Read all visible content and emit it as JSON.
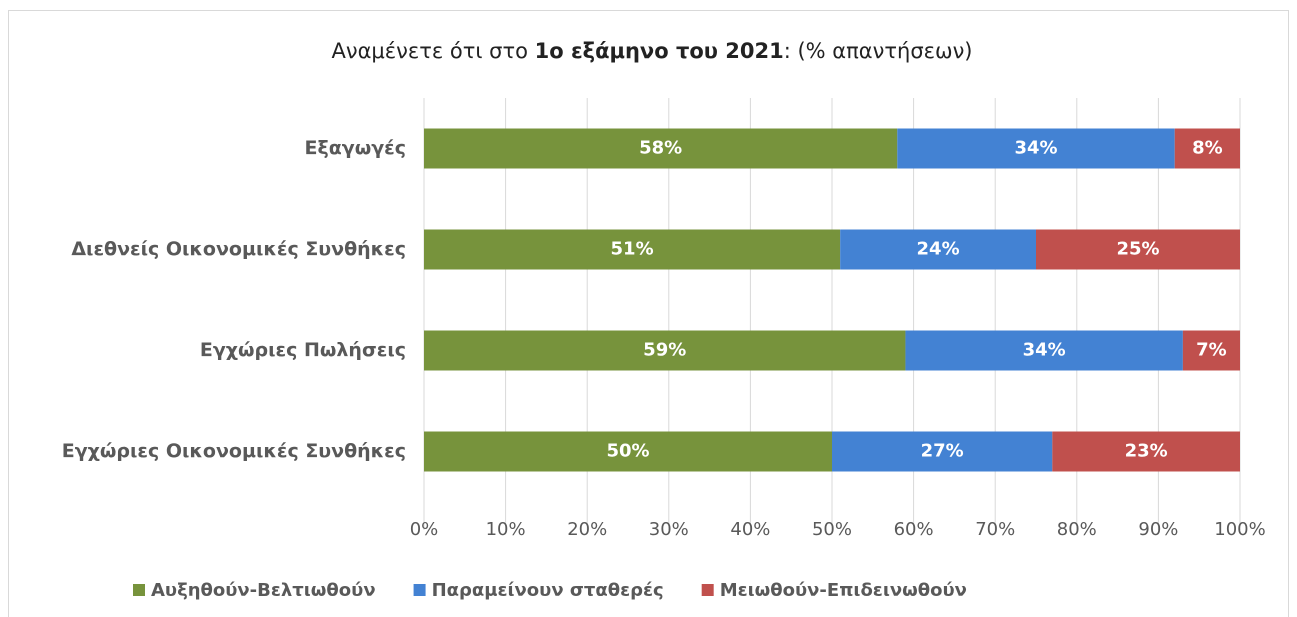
{
  "chart_data": {
    "type": "stacked_barh",
    "title": [
      "Αναμένετε ότι στο ",
      "1ο εξάμηνο του 2021",
      ": (% απαντήσεων)"
    ],
    "categories": [
      "Εξαγωγές",
      "Διεθνείς Οικονομικές Συνθήκες",
      "Εγχώριες Πωλήσεις",
      "Εγχώριες Οικονομικές Συνθήκες"
    ],
    "series": [
      {
        "name": "Αυξηθούν-Βελτιωθούν",
        "color": "#77933c",
        "values": [
          58,
          51,
          59,
          50
        ],
        "value_labels": [
          "58%",
          "51%",
          "59%",
          "50%"
        ]
      },
      {
        "name": "Παραμείνουν σταθερές",
        "color": "#4382d3",
        "values": [
          34,
          24,
          34,
          27
        ],
        "value_labels": [
          "34%",
          "24%",
          "34%",
          "27%"
        ]
      },
      {
        "name": "Μειωθούν-Επιδεινωθούν",
        "color": "#c0504d",
        "values": [
          8,
          25,
          7,
          23
        ],
        "value_labels": [
          "8%",
          "25%",
          "7%",
          "23%"
        ]
      }
    ],
    "xlim": [
      0,
      100
    ],
    "xticks": [
      {
        "value": 0,
        "label": "0%"
      },
      {
        "value": 10,
        "label": "10%"
      },
      {
        "value": 20,
        "label": "20%"
      },
      {
        "value": 30,
        "label": "30%"
      },
      {
        "value": 40,
        "label": "40%"
      },
      {
        "value": 50,
        "label": "50%"
      },
      {
        "value": 60,
        "label": "60%"
      },
      {
        "value": 70,
        "label": "70%"
      },
      {
        "value": 80,
        "label": "80%"
      },
      {
        "value": 90,
        "label": "90%"
      },
      {
        "value": 100,
        "label": "100%"
      }
    ],
    "grid": true,
    "legend": "bottom"
  }
}
